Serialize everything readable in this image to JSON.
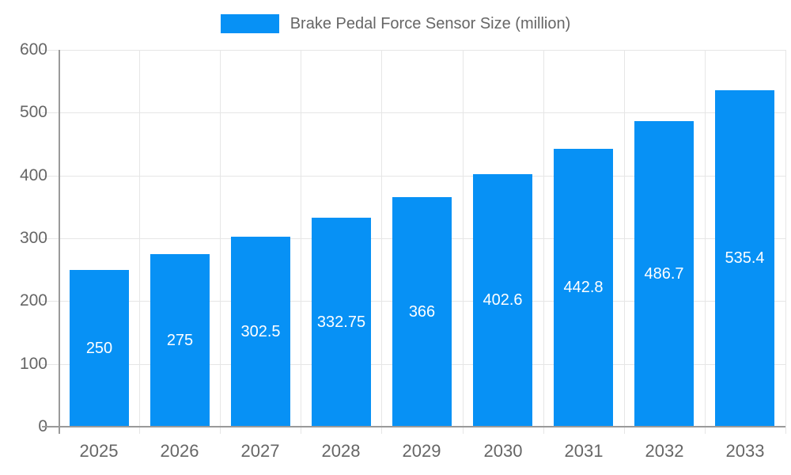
{
  "legend": {
    "label": "Brake Pedal Force Sensor Size (million)"
  },
  "chart_data": {
    "type": "bar",
    "title": "",
    "xlabel": "",
    "ylabel": "",
    "legend_label": "Brake Pedal Force Sensor Size (million)",
    "legend_position": "top-center",
    "categories": [
      "2025",
      "2026",
      "2027",
      "2028",
      "2029",
      "2030",
      "2031",
      "2032",
      "2033"
    ],
    "values": [
      250,
      275,
      302.5,
      332.75,
      366,
      402.6,
      442.8,
      486.7,
      535.4
    ],
    "value_labels": [
      "250",
      "275",
      "302.5",
      "332.75",
      "366",
      "402.6",
      "442.8",
      "486.7",
      "535.4"
    ],
    "ylim": [
      0,
      600
    ],
    "yticks": [
      0,
      100,
      200,
      300,
      400,
      500,
      600
    ],
    "grid": true,
    "colors": {
      "bar": "#0791F5",
      "bar_label": "#ffffff",
      "axis_line": "#9a9a9a",
      "gridline": "#e6e6e6",
      "tick_label": "#666666",
      "legend_text": "#666666",
      "background": "#ffffff"
    }
  }
}
